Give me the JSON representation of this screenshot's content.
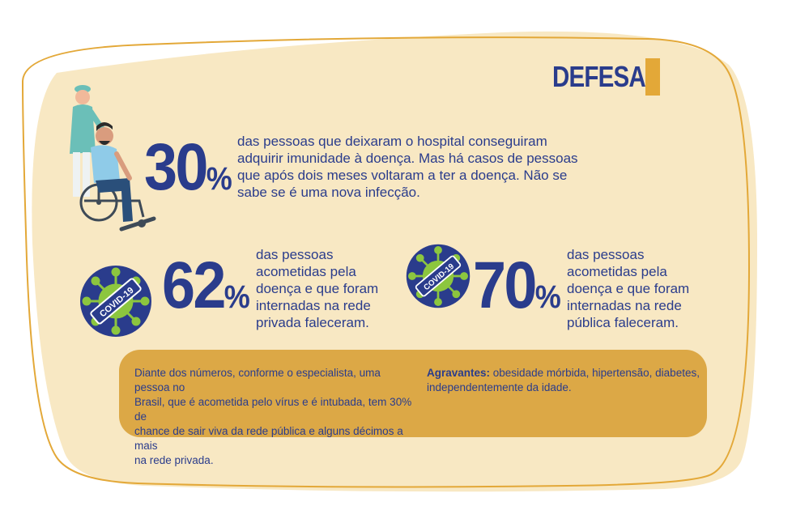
{
  "header": {
    "title": "DEFESA"
  },
  "stats": [
    {
      "value": "30",
      "unit": "%",
      "text_lines": [
        "das pessoas que deixaram o hospital conseguiram",
        "adquirir imunidade à doença. Mas há casos de pessoas",
        "que após dois meses voltaram a ter a doença. Não se",
        "sabe se é uma nova infecção."
      ]
    },
    {
      "value": "62",
      "unit": "%",
      "text_lines": [
        "das pessoas",
        "acometidas pela",
        "doença e que foram",
        "internadas na rede",
        "privada faleceram."
      ]
    },
    {
      "value": "70",
      "unit": "%",
      "text_lines": [
        "das pessoas",
        "acometidas pela",
        "doença e que foram",
        "internadas na rede",
        "pública faleceram."
      ]
    }
  ],
  "virus_badge": {
    "label": "COVID-19"
  },
  "note": {
    "left_lines": [
      "Diante dos números, conforme o especialista, uma pessoa no",
      "Brasil, que é acometida pelo vírus e é intubada, tem 30% de",
      "chance de sair viva da rede pública e alguns décimos a mais",
      "na rede privada."
    ],
    "right_label": "Agravantes:",
    "right_lines": [
      " obesidade mórbida, hipertensão, diabetes,",
      "independentemente da idade."
    ]
  },
  "colors": {
    "navy": "#2a3c8c",
    "gold": "#e3a838",
    "cream": "#f8e8c3",
    "green": "#8cc63f",
    "teal": "#6bbfb8"
  },
  "icons": [
    "nurse-with-wheelchair-patient-icon",
    "covid-virus-icon"
  ]
}
